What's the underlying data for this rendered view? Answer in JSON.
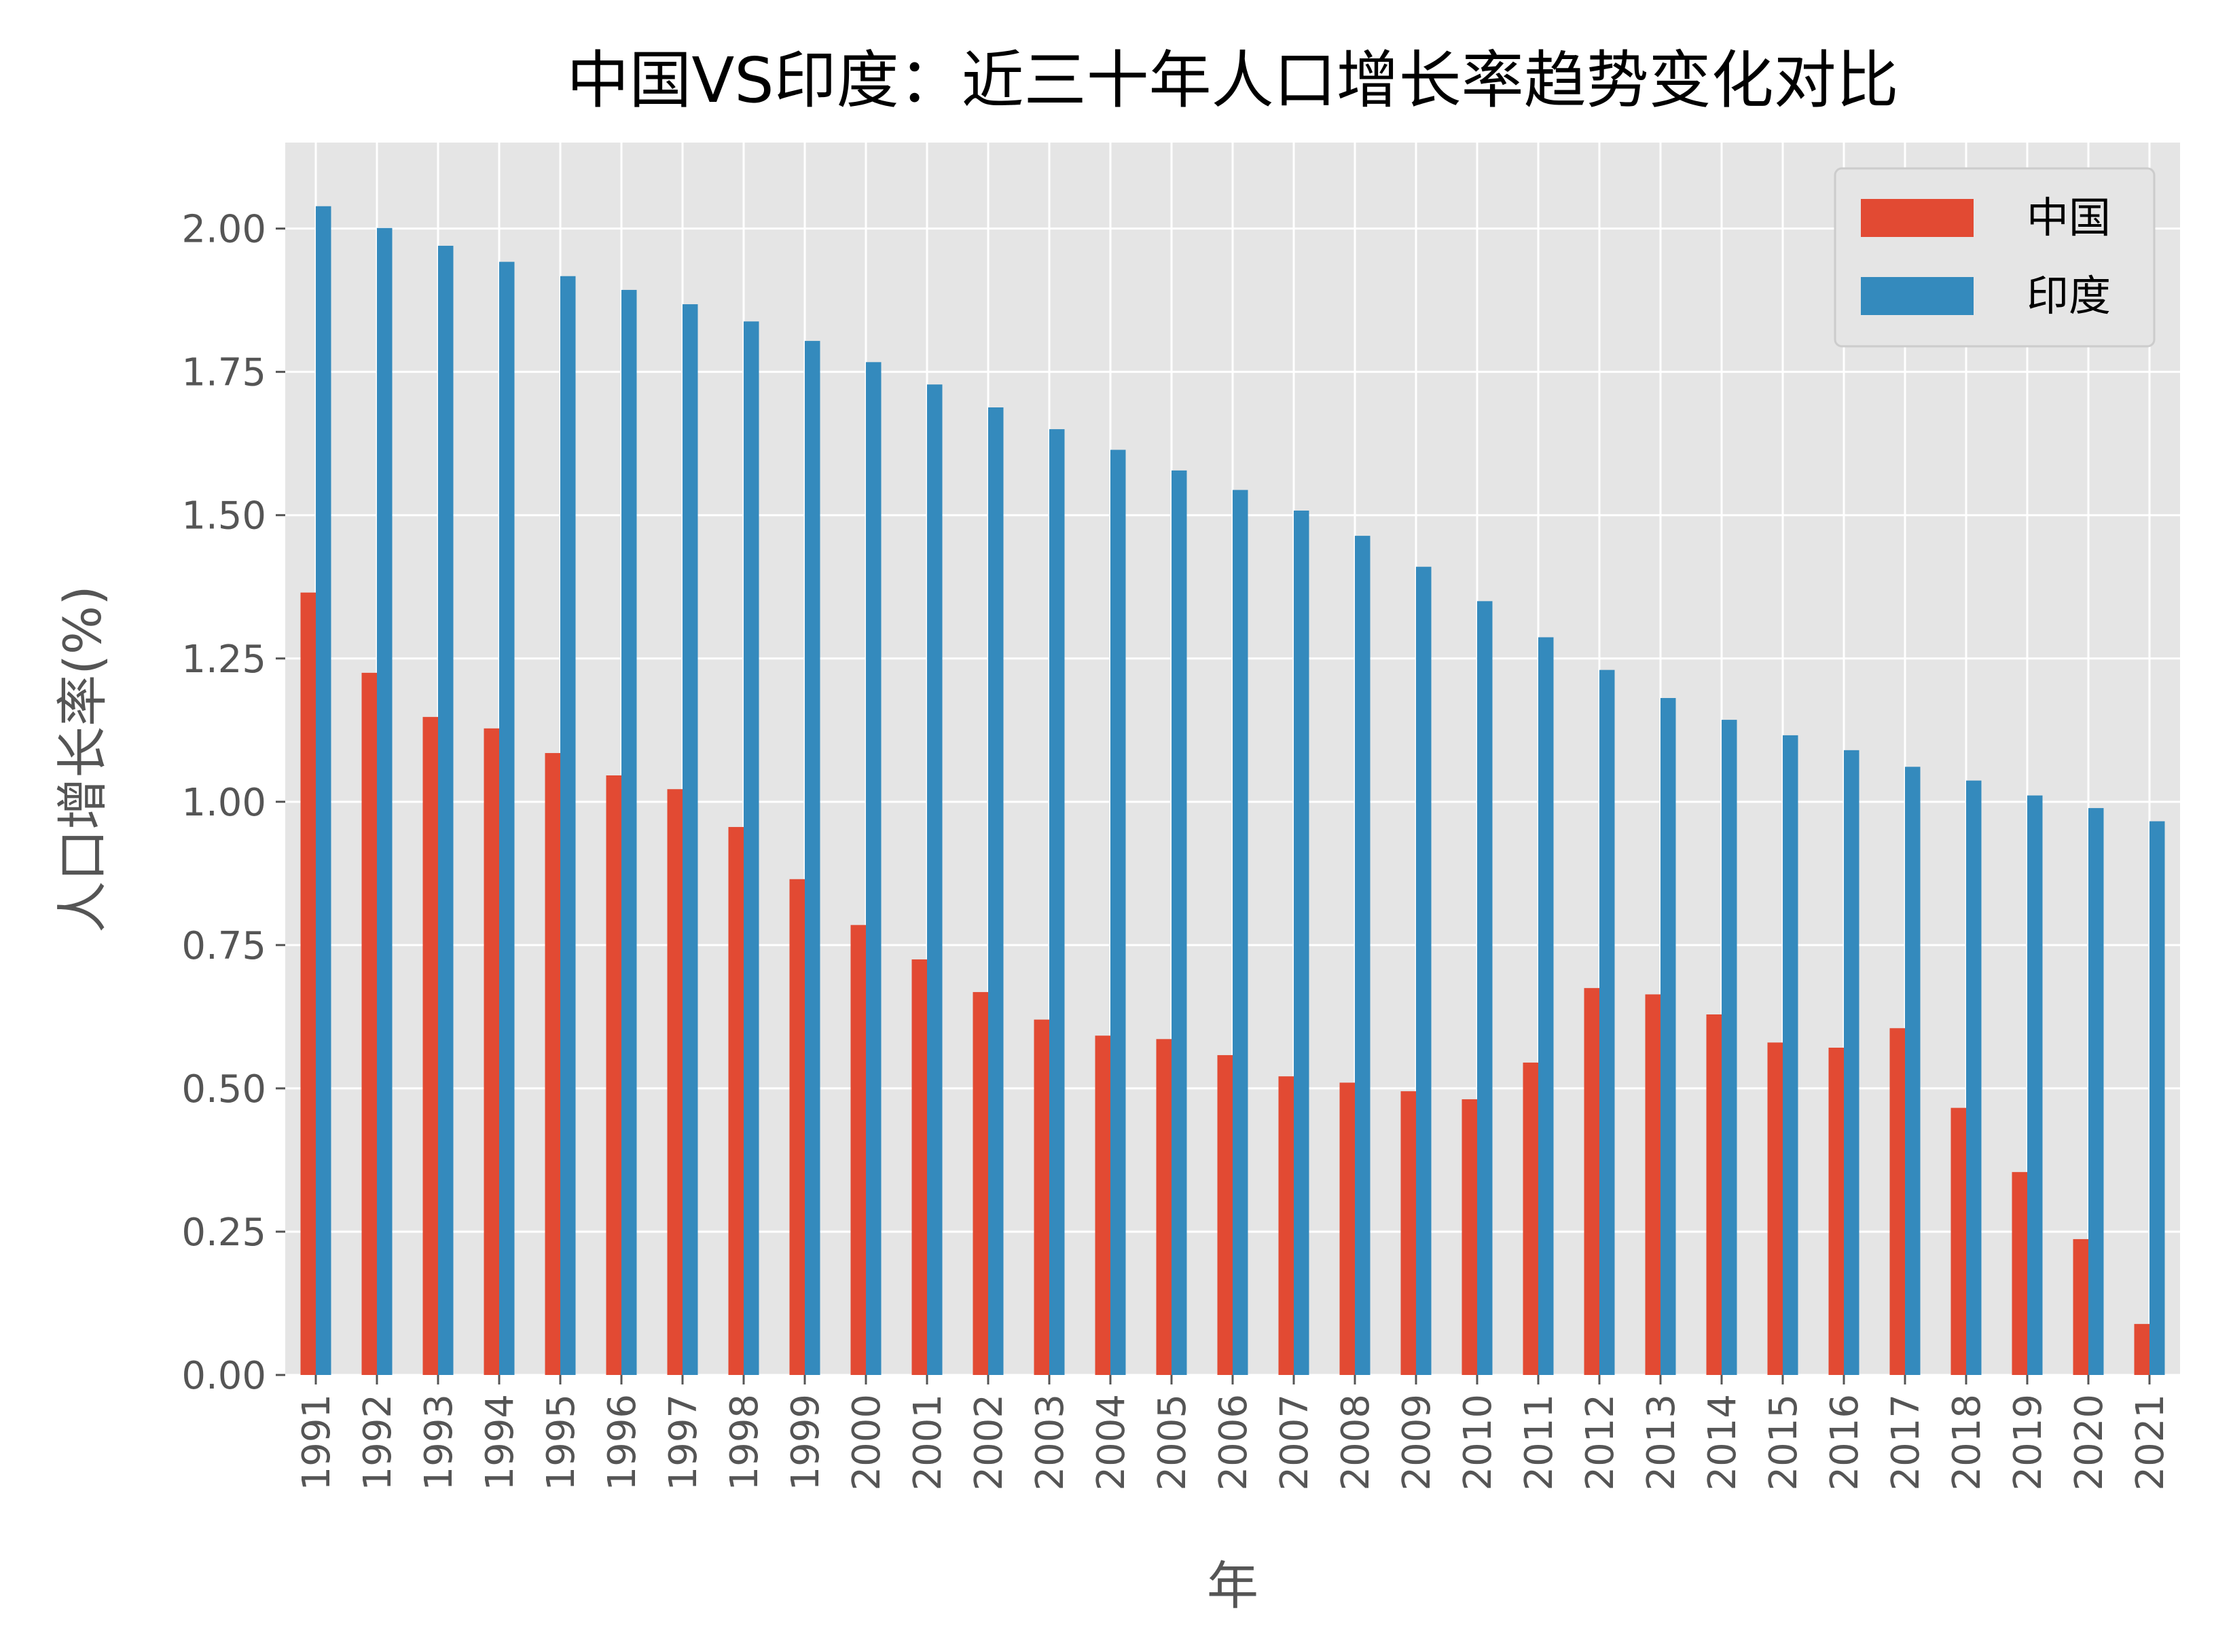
{
  "chart_data": {
    "type": "bar",
    "title": "中国VS印度：近三十年人口增长率趋势变化对比",
    "xlabel": "年",
    "ylabel": "人口增长率(%)",
    "ylim": [
      0,
      2.15
    ],
    "yticks": [
      "0.00",
      "0.25",
      "0.50",
      "0.75",
      "1.00",
      "1.25",
      "1.50",
      "1.75",
      "2.00"
    ],
    "grid": true,
    "legend_position": "top-right",
    "categories": [
      "1991",
      "1992",
      "1993",
      "1994",
      "1995",
      "1996",
      "1997",
      "1998",
      "1999",
      "2000",
      "2001",
      "2002",
      "2003",
      "2004",
      "2005",
      "2006",
      "2007",
      "2008",
      "2009",
      "2010",
      "2011",
      "2012",
      "2013",
      "2014",
      "2015",
      "2016",
      "2017",
      "2018",
      "2019",
      "2020",
      "2021"
    ],
    "series": [
      {
        "name": "中国",
        "color": "#E24A33",
        "values": [
          1.365,
          1.225,
          1.148,
          1.128,
          1.085,
          1.046,
          1.022,
          0.956,
          0.865,
          0.785,
          0.725,
          0.668,
          0.62,
          0.592,
          0.586,
          0.558,
          0.521,
          0.51,
          0.495,
          0.481,
          0.545,
          0.675,
          0.664,
          0.629,
          0.58,
          0.571,
          0.605,
          0.466,
          0.354,
          0.237,
          0.089
        ]
      },
      {
        "name": "印度",
        "color": "#348ABD",
        "values": [
          2.039,
          2.001,
          1.97,
          1.942,
          1.917,
          1.893,
          1.868,
          1.838,
          1.804,
          1.767,
          1.728,
          1.688,
          1.65,
          1.614,
          1.578,
          1.544,
          1.508,
          1.464,
          1.41,
          1.35,
          1.287,
          1.23,
          1.181,
          1.143,
          1.116,
          1.09,
          1.061,
          1.037,
          1.011,
          0.989,
          0.966
        ]
      }
    ]
  }
}
